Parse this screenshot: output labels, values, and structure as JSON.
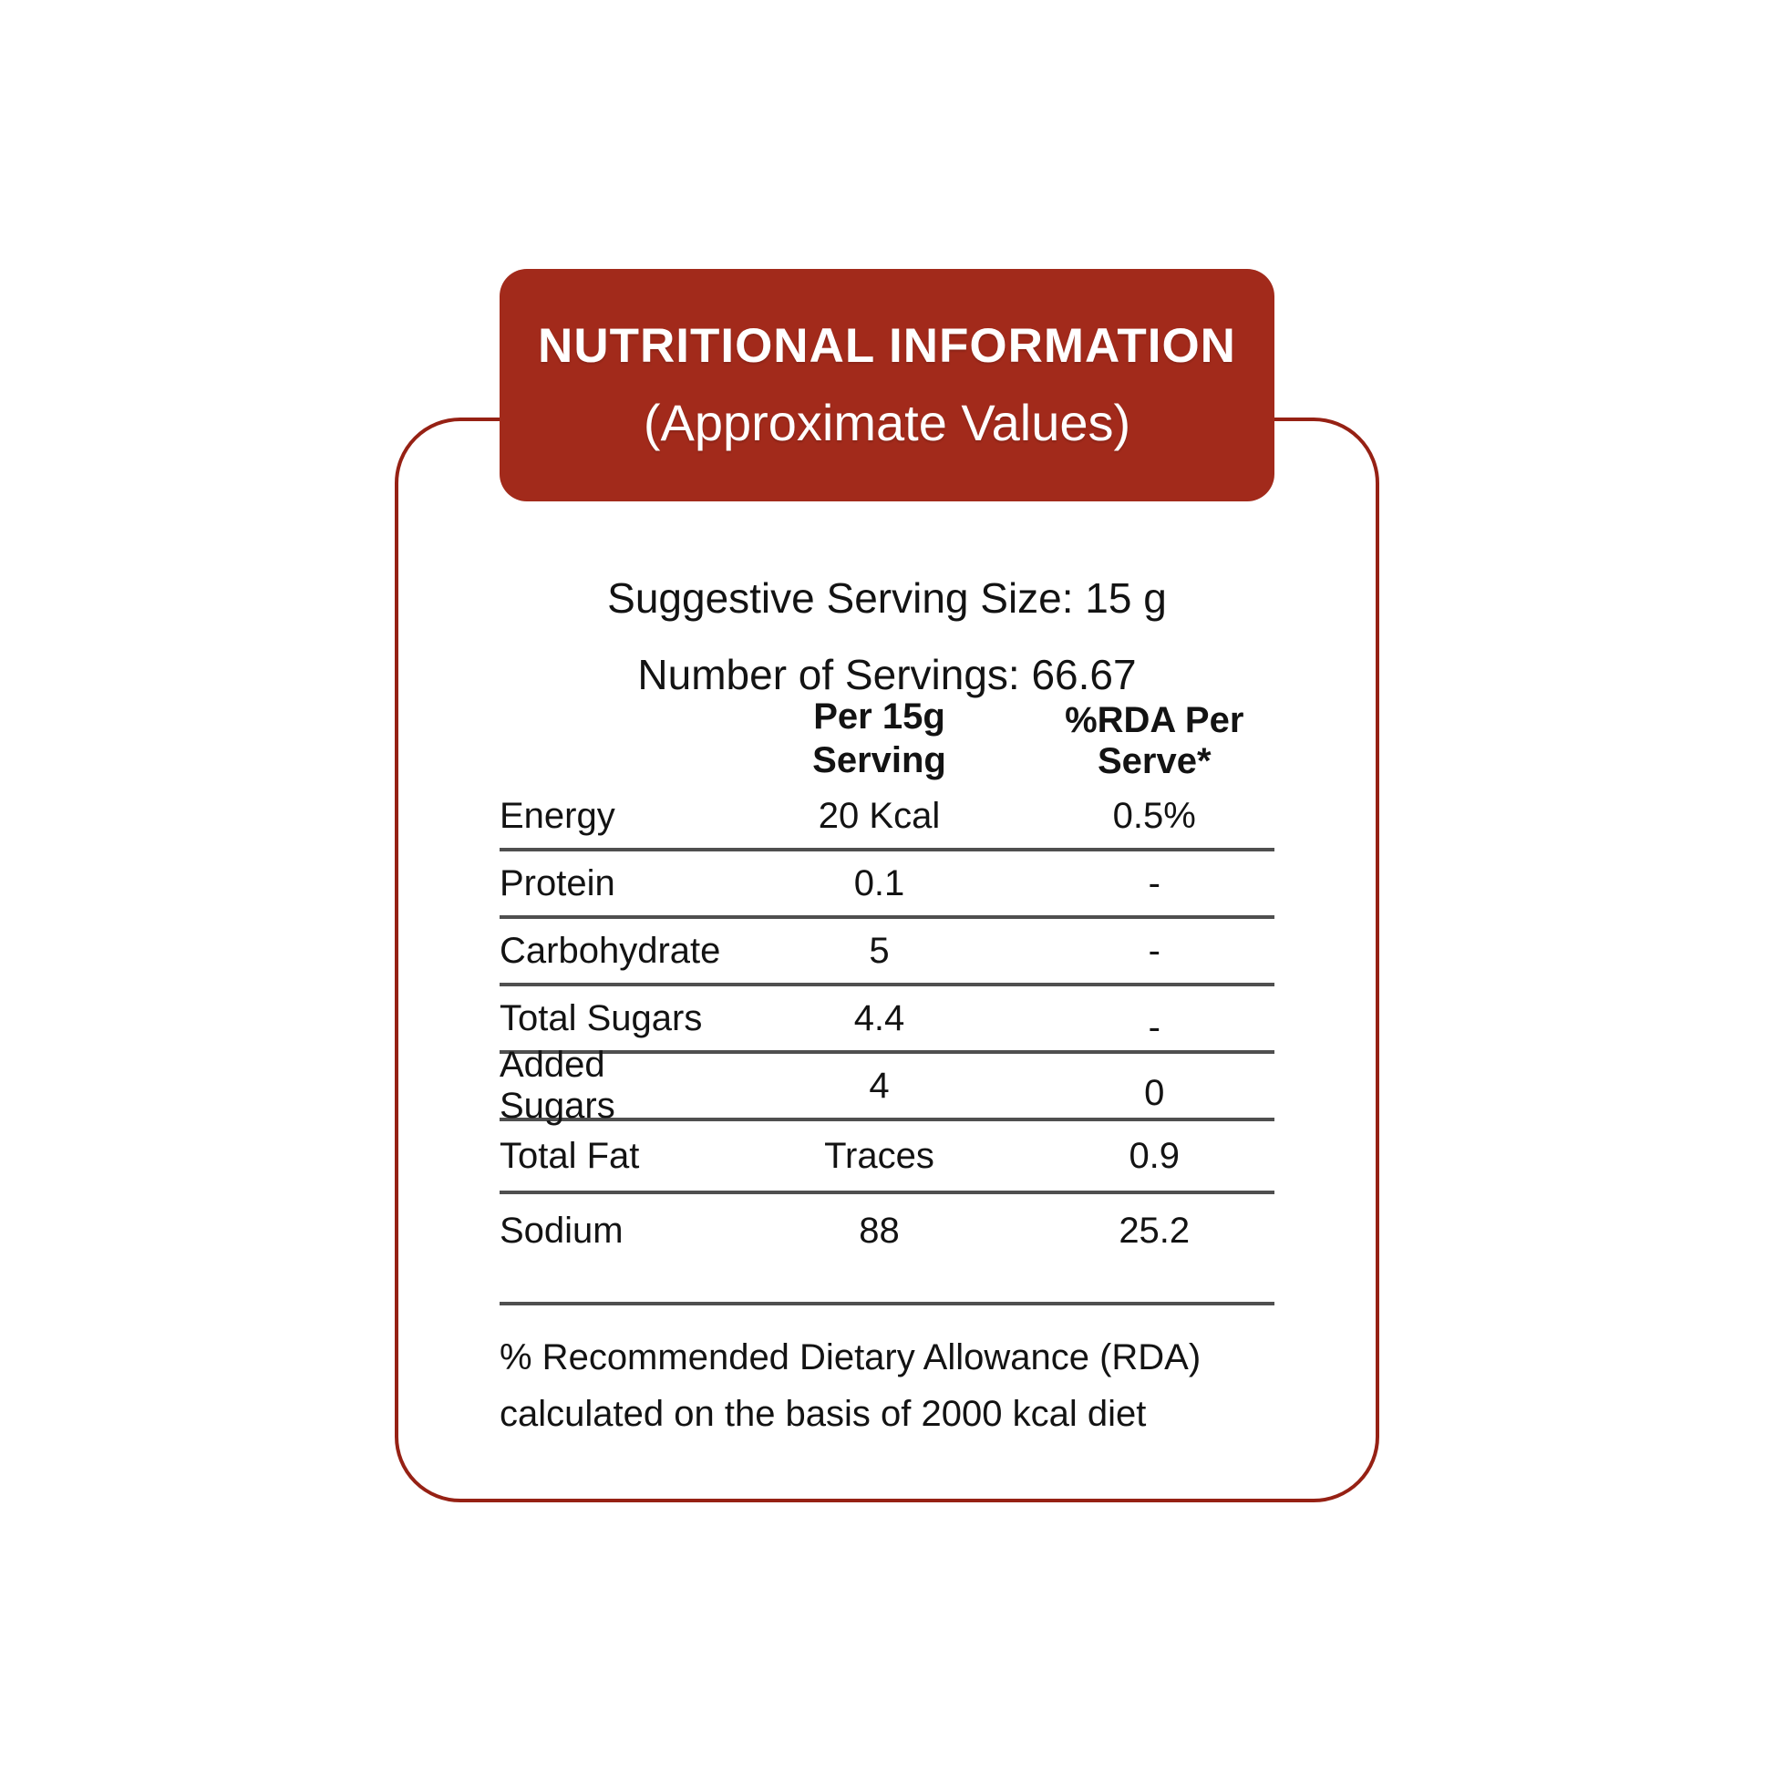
{
  "header": {
    "title": "NUTRITIONAL INFORMATION",
    "subtitle": "(Approximate Values)"
  },
  "serving": {
    "line1": "Suggestive Serving Size: 15 g",
    "line2": "Number of Servings: 66.67"
  },
  "table": {
    "columns": {
      "serving_line1": "Per 15g",
      "serving_line2": "Serving",
      "rda": "%RDA Per Serve*"
    },
    "rows": [
      {
        "label": "Energy",
        "per_serving": "20 Kcal",
        "rda": "0.5%"
      },
      {
        "label": "Protein",
        "per_serving": "0.1",
        "rda": "-"
      },
      {
        "label": "Carbohydrate",
        "per_serving": "5",
        "rda": "-"
      },
      {
        "label": "Total Sugars",
        "per_serving": "4.4",
        "rda": "-"
      },
      {
        "label": "Added Sugars",
        "per_serving": "4",
        "rda": "0"
      },
      {
        "label": "Total Fat",
        "per_serving": "Traces",
        "rda": "0.9"
      },
      {
        "label": "Sodium",
        "per_serving": "88",
        "rda": "25.2"
      }
    ]
  },
  "footnote": {
    "line1": "% Recommended Dietary Allowance (RDA)",
    "line2": "calculated on the basis of 2000 kcal diet"
  },
  "colors": {
    "brand_red": "#A22A1B",
    "border_red": "#962114",
    "rule_gray": "#4F4F4F",
    "text": "#131313"
  }
}
